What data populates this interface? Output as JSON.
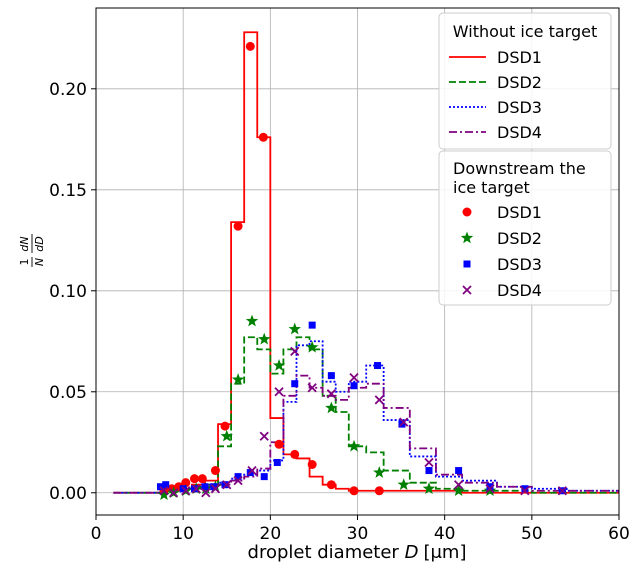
{
  "chart_data": {
    "type": "line",
    "xlabel_prefix": "droplet diameter ",
    "xlabel_var": "D",
    "xlabel_unit": "[μm]",
    "ylabel": "1/N dN/dD",
    "xlim": [
      0,
      60
    ],
    "ylim": [
      -0.011,
      0.24
    ],
    "xticks": [
      0,
      10,
      20,
      30,
      40,
      50,
      60
    ],
    "yticks": [
      0.0,
      0.05,
      0.1,
      0.15,
      0.2
    ],
    "ytick_labels": [
      "0.00",
      "0.05",
      "0.10",
      "0.15",
      "0.20"
    ],
    "grid": true,
    "legends": [
      {
        "title": "Without ice target",
        "placement": "top-right",
        "entries": [
          {
            "label": "DSD1",
            "color": "#ff0000",
            "style": "solid"
          },
          {
            "label": "DSD2",
            "color": "#008000",
            "style": "dashed"
          },
          {
            "label": "DSD3",
            "color": "#0000ff",
            "style": "dotted"
          },
          {
            "label": "DSD4",
            "color": "#800080",
            "style": "dashdot"
          }
        ]
      },
      {
        "title": "Downstream the\nice target",
        "placement": "right",
        "entries": [
          {
            "label": "DSD1",
            "color": "#ff0000",
            "marker": "circle"
          },
          {
            "label": "DSD2",
            "color": "#008000",
            "marker": "star"
          },
          {
            "label": "DSD3",
            "color": "#0000ff",
            "marker": "square"
          },
          {
            "label": "DSD4",
            "color": "#800080",
            "marker": "x"
          }
        ]
      }
    ],
    "step_series": [
      {
        "name": "DSD1",
        "color": "#ff0000",
        "style": "solid",
        "x": [
          2,
          7.4,
          9,
          11,
          12.5,
          14,
          15.5,
          17,
          18.5,
          20,
          21.5,
          23,
          24.5,
          26,
          27.5,
          29,
          31,
          33,
          36,
          39,
          42,
          46,
          50,
          54,
          60
        ],
        "y": [
          0,
          0.001,
          0.002,
          0.004,
          0.006,
          0.034,
          0.134,
          0.228,
          0.176,
          0.037,
          0.019,
          0.017,
          0.008,
          0.004,
          0.002,
          0.001,
          0.001,
          0.001,
          0.001,
          0.001,
          0,
          0,
          0,
          0,
          0
        ]
      },
      {
        "name": "DSD2",
        "color": "#008000",
        "style": "dashed",
        "x": [
          2,
          7.4,
          9,
          11,
          12.5,
          14,
          15.5,
          17,
          18.5,
          20,
          21.5,
          23,
          24.5,
          26,
          27.5,
          29,
          31,
          33,
          36,
          39,
          42,
          46,
          50,
          54,
          60
        ],
        "y": [
          0,
          0.001,
          0.001,
          0.002,
          0.004,
          0.023,
          0.054,
          0.077,
          0.071,
          0.059,
          0.071,
          0.077,
          0.071,
          0.048,
          0.04,
          0.023,
          0.02,
          0.011,
          0.005,
          0.002,
          0.001,
          0.001,
          0,
          0,
          0
        ]
      },
      {
        "name": "DSD3",
        "color": "#0000ff",
        "style": "dotted",
        "x": [
          2,
          7.4,
          9,
          11,
          12.5,
          14,
          15.5,
          17,
          18.5,
          20,
          21.5,
          23,
          24.5,
          26,
          27.5,
          29,
          31,
          33,
          36,
          39,
          42,
          46,
          50,
          54,
          60
        ],
        "y": [
          0,
          0.003,
          0.002,
          0.003,
          0.004,
          0.005,
          0.007,
          0.009,
          0.011,
          0.016,
          0.045,
          0.073,
          0.075,
          0.055,
          0.05,
          0.055,
          0.063,
          0.036,
          0.018,
          0.008,
          0.006,
          0.003,
          0.002,
          0.001,
          0
        ]
      },
      {
        "name": "DSD4",
        "color": "#800080",
        "style": "dashdot",
        "x": [
          2,
          7.4,
          9,
          11,
          12.5,
          14,
          15.5,
          17,
          18.5,
          20,
          21.5,
          23,
          24.5,
          26,
          27.5,
          29,
          31,
          33,
          36,
          39,
          42,
          46,
          50,
          54,
          60
        ],
        "y": [
          0,
          0.001,
          0.001,
          0.002,
          0.003,
          0.004,
          0.006,
          0.008,
          0.012,
          0.025,
          0.048,
          0.058,
          0.052,
          0.048,
          0.046,
          0.052,
          0.054,
          0.042,
          0.022,
          0.009,
          0.005,
          0.003,
          0.001,
          0.001,
          0
        ]
      }
    ],
    "scatter_series": [
      {
        "name": "DSD1",
        "color": "#ff0000",
        "marker": "circle",
        "x": [
          7.8,
          8.7,
          9.5,
          10.3,
          11.3,
          12.2,
          13.7,
          14.8,
          16.3,
          17.7,
          19.2,
          21.0,
          22.8,
          24.8,
          27.0,
          29.6,
          32.5
        ],
        "y": [
          0.001,
          0.002,
          0.003,
          0.005,
          0.007,
          0.007,
          0.011,
          0.033,
          0.132,
          0.221,
          0.176,
          0.024,
          0.019,
          0.014,
          0.004,
          0.001,
          0.001
        ]
      },
      {
        "name": "DSD2",
        "color": "#008000",
        "marker": "star",
        "x": [
          7.8,
          8.9,
          10.3,
          11.5,
          12.6,
          13.7,
          15.0,
          16.3,
          17.9,
          19.3,
          21.0,
          22.8,
          24.8,
          27.0,
          29.6,
          32.5,
          35.3,
          38.2,
          41.6,
          45.2
        ],
        "y": [
          -0.001,
          0,
          0.001,
          0.002,
          0.002,
          0.003,
          0.028,
          0.056,
          0.085,
          0.076,
          0.063,
          0.081,
          0.072,
          0.042,
          0.023,
          0.01,
          0.004,
          0.002,
          0.001,
          0.001
        ]
      },
      {
        "name": "DSD3",
        "color": "#0000ff",
        "marker": "square",
        "x": [
          7.4,
          8.0,
          10.0,
          11.3,
          12.5,
          13.5,
          14.8,
          16.3,
          17.7,
          19.3,
          20.8,
          22.8,
          24.8,
          27.0,
          29.6,
          32.3,
          35.1,
          38.2,
          41.6,
          45.2,
          49.2,
          53.5
        ],
        "y": [
          0.003,
          0.004,
          0.002,
          0.002,
          0.003,
          0.003,
          0.004,
          0.008,
          0.01,
          0.008,
          0.015,
          0.054,
          0.083,
          0.058,
          0.053,
          0.063,
          0.034,
          0.011,
          0.011,
          0.003,
          0.002,
          0.001
        ]
      },
      {
        "name": "DSD4",
        "color": "#800080",
        "marker": "x",
        "x": [
          7.8,
          8.9,
          10.3,
          11.5,
          12.6,
          13.7,
          15.0,
          16.3,
          17.9,
          19.3,
          21.0,
          22.8,
          24.8,
          27.0,
          29.6,
          32.5,
          35.3,
          38.2,
          41.6,
          45.2,
          49.2,
          53.5
        ],
        "y": [
          0.001,
          0,
          0.001,
          0.002,
          0,
          0.002,
          0.004,
          0.006,
          0.011,
          0.028,
          0.05,
          0.07,
          0.052,
          0.049,
          0.057,
          0.046,
          0.035,
          0.015,
          0.004,
          0.002,
          0.001,
          0.001
        ]
      }
    ]
  }
}
